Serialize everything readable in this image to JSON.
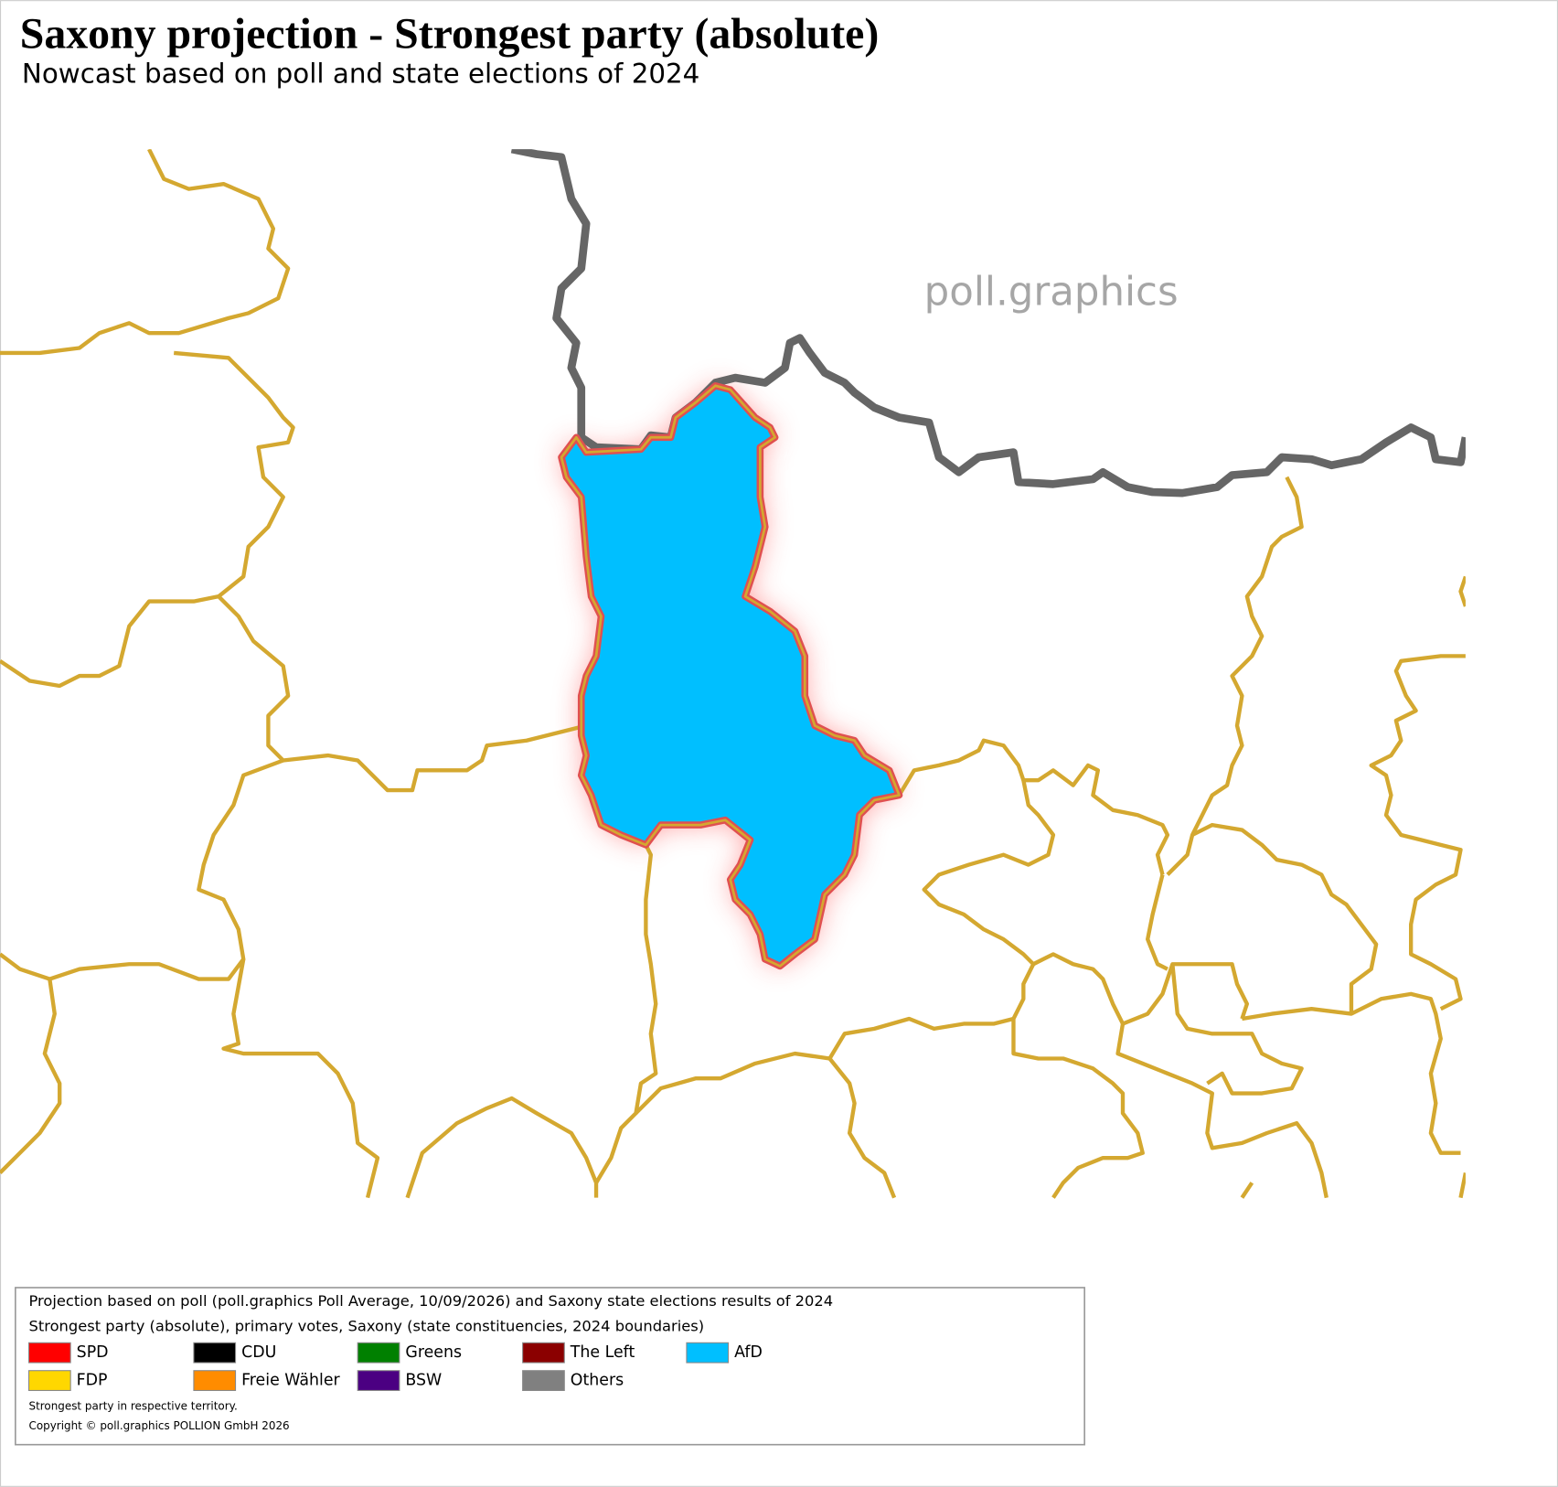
{
  "header": {
    "title": "Saxony projection - Strongest party (absolute)",
    "subtitle": "Nowcast based on poll and state elections of 2024"
  },
  "watermark": "poll.graphics",
  "legend": {
    "lines": [
      "Projection based on poll (poll.graphics Poll Average, 10/09/2026) and Saxony state elections results of 2024",
      "Strongest party (absolute), primary votes, Saxony (state constituencies, 2024 boundaries)"
    ],
    "items": [
      {
        "label": "SPD",
        "color": "#ff0000"
      },
      {
        "label": "CDU",
        "color": "#000000"
      },
      {
        "label": "Greens",
        "color": "#008000"
      },
      {
        "label": "The Left",
        "color": "#8b0000"
      },
      {
        "label": "AfD",
        "color": "#00bfff"
      },
      {
        "label": "FDP",
        "color": "#ffd700"
      },
      {
        "label": "Freie Wähler",
        "color": "#ff8c00"
      },
      {
        "label": "BSW",
        "color": "#4b0082"
      },
      {
        "label": "Others",
        "color": "#808080"
      }
    ],
    "notes": [
      "Strongest party in respective territory.",
      "Copyright © poll.graphics POLLION GmbH 2026"
    ]
  }
}
